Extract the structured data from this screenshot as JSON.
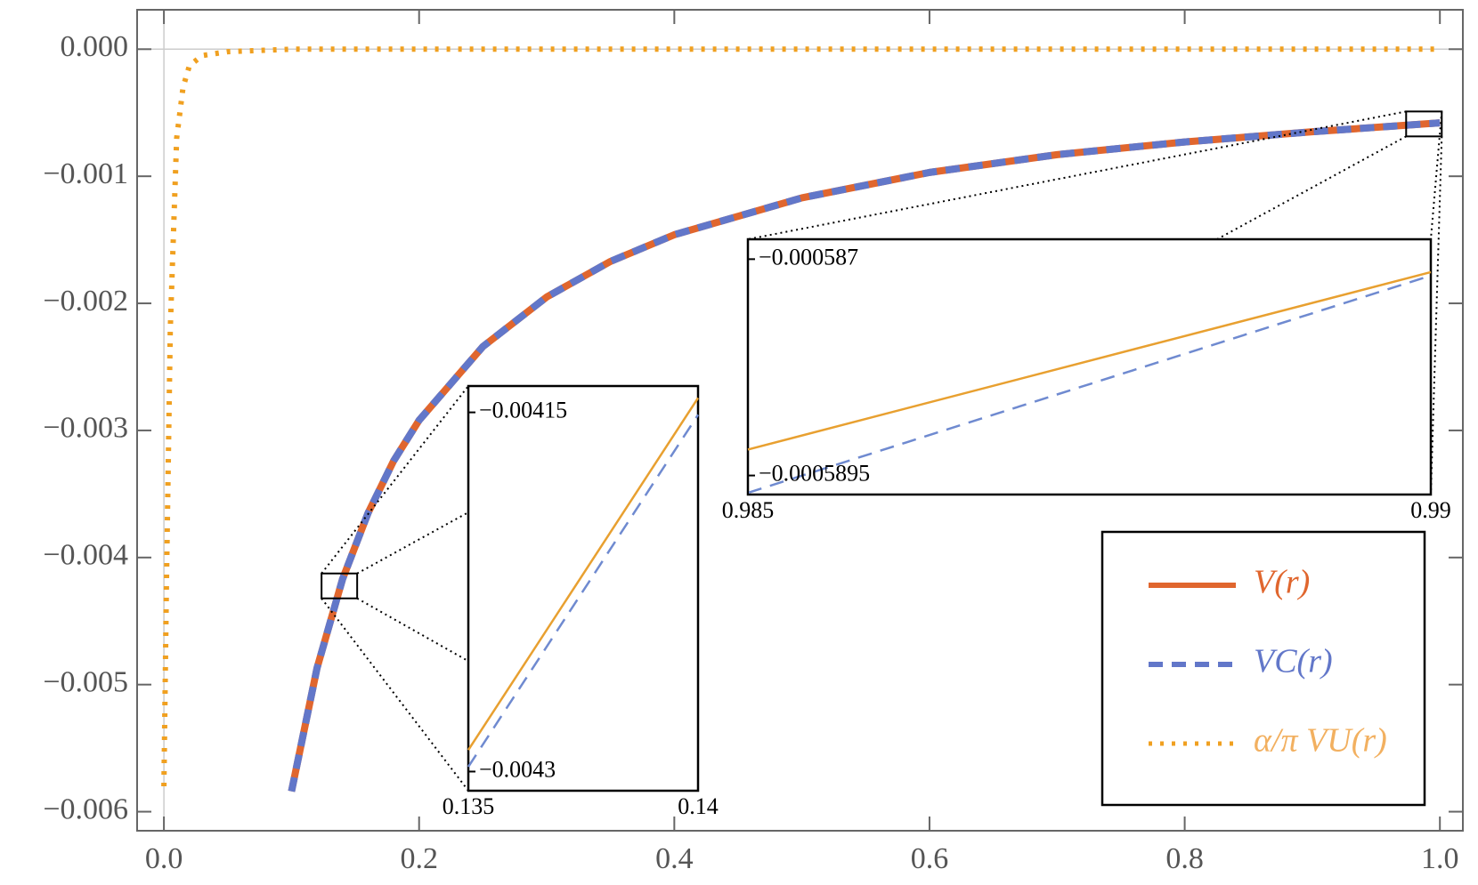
{
  "chart_data": {
    "type": "line",
    "xlim": [
      -0.021,
      1.018
    ],
    "ylim": [
      -0.00615,
      0.00031
    ],
    "xticks": [
      {
        "value": 0,
        "label": "0.0"
      },
      {
        "value": 0.2,
        "label": "0.2"
      },
      {
        "value": 0.4,
        "label": "0.4"
      },
      {
        "value": 0.6,
        "label": "0.6"
      },
      {
        "value": 0.8,
        "label": "0.8"
      },
      {
        "value": 1,
        "label": "1.0"
      }
    ],
    "yticks": [
      {
        "value": 0,
        "label": "0.000"
      },
      {
        "value": -0.001,
        "label": "−0.001"
      },
      {
        "value": -0.002,
        "label": "−0.002"
      },
      {
        "value": -0.003,
        "label": "−0.003"
      },
      {
        "value": -0.004,
        "label": "−0.004"
      },
      {
        "value": -0.005,
        "label": "−0.005"
      },
      {
        "value": -0.006,
        "label": "−0.006"
      }
    ],
    "legend": "lower right",
    "series": [
      {
        "name": "V(r)",
        "color": "#e0662e",
        "style": "solid",
        "x": [
          0.1,
          0.12,
          0.14,
          0.16,
          0.18,
          0.2,
          0.25,
          0.3,
          0.35,
          0.4,
          0.5,
          0.6,
          0.7,
          0.8,
          0.9,
          1.0
        ],
        "values": [
          -0.00584,
          -0.00487,
          -0.00417,
          -0.00365,
          -0.00324,
          -0.00292,
          -0.00234,
          -0.00195,
          -0.00167,
          -0.00146,
          -0.00117,
          -0.00097,
          -0.00083,
          -0.00073,
          -0.00065,
          -0.00058
        ]
      },
      {
        "name": "VC(r)",
        "color": "#6277c9",
        "style": "dashed",
        "x": [
          0.1,
          0.12,
          0.14,
          0.16,
          0.18,
          0.2,
          0.25,
          0.3,
          0.35,
          0.4,
          0.5,
          0.6,
          0.7,
          0.8,
          0.9,
          1.0
        ],
        "values": [
          -0.00584,
          -0.00487,
          -0.00417,
          -0.00365,
          -0.00324,
          -0.00292,
          -0.00234,
          -0.00195,
          -0.00167,
          -0.00146,
          -0.00117,
          -0.00097,
          -0.00083,
          -0.00073,
          -0.00065,
          -0.00058
        ]
      },
      {
        "name": "α/π VU(r)",
        "color": "#f0a020",
        "style": "dotted",
        "x": [
          0,
          0.002,
          0.005,
          0.01,
          0.015,
          0.02,
          0.03,
          0.05,
          0.1,
          0.2,
          0.4,
          0.6,
          0.8,
          1.0
        ],
        "values": [
          -0.0058,
          -0.0042,
          -0.0022,
          -0.0007,
          -0.0003,
          -0.00013,
          -5e-05,
          -2e-05,
          0,
          0,
          0,
          0,
          0,
          0
        ]
      }
    ],
    "insets": [
      {
        "xlim": [
          0.135,
          0.14
        ],
        "ylim": [
          -0.004308,
          -0.004139
        ],
        "xticks": [
          0.135,
          0.14
        ],
        "yticks": [
          {
            "value": -0.00415,
            "label": "−0.00415"
          },
          {
            "value": -0.0043,
            "label": "−0.0043"
          }
        ],
        "series": [
          {
            "color": "#e8a030",
            "style": "solid",
            "x": [
              0.135,
              0.14
            ],
            "values": [
              -0.004291,
              -0.004144
            ]
          },
          {
            "color": "#6f8ad0",
            "style": "dashed",
            "x": [
              0.135,
              0.14
            ],
            "values": [
              -0.004298,
              -0.004151
            ]
          }
        ]
      },
      {
        "xlim": [
          0.985,
          0.99
        ],
        "ylim": [
          -0.00058972,
          -0.00058677
        ],
        "xticks": [
          0.985,
          0.99
        ],
        "yticks": [
          {
            "value": -0.000587,
            "label": "−0.000587"
          },
          {
            "value": -0.0005895,
            "label": "−0.0005895"
          }
        ],
        "series": [
          {
            "color": "#e8a030",
            "style": "solid",
            "x": [
              0.985,
              0.99
            ],
            "values": [
              -0.0005892,
              -0.00058715
            ]
          },
          {
            "color": "#6f8ad0",
            "style": "dashed",
            "x": [
              0.985,
              0.99
            ],
            "values": [
              -0.0005897,
              -0.00058719
            ]
          }
        ]
      }
    ]
  }
}
